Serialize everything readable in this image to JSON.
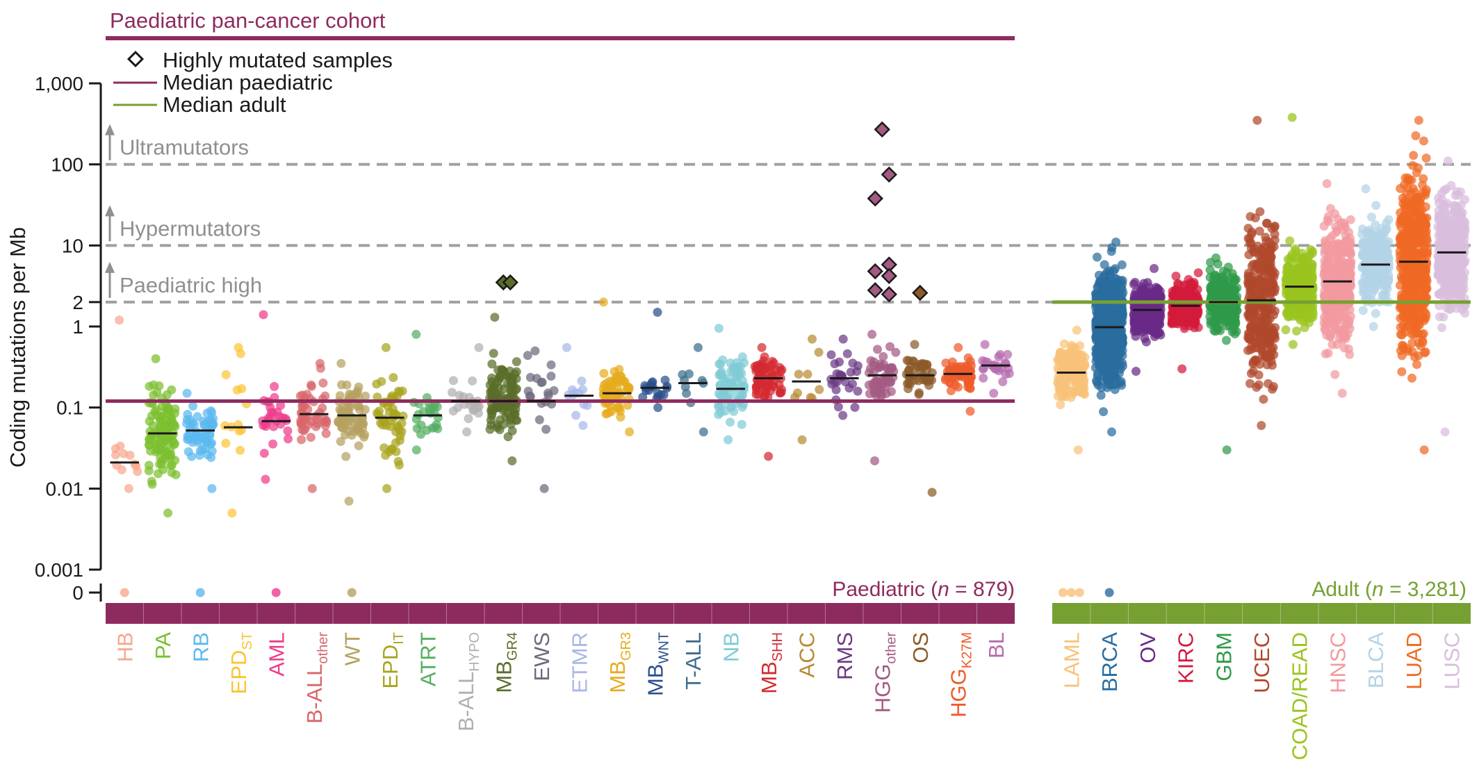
{
  "colors": {
    "paediatric": "#8e2b5e",
    "adult": "#76a032",
    "threshold": "#a0a0a0",
    "axis": "#1a1a1a"
  },
  "chart_data": {
    "type": "scatter",
    "title": "Paediatric pan-cancer cohort",
    "ylabel": "Coding mutations per Mb",
    "yscale": "log",
    "ylim": [
      0.001,
      1000
    ],
    "yticks": [
      {
        "value": 1000,
        "label": "1,000"
      },
      {
        "value": 100,
        "label": "100"
      },
      {
        "value": 10,
        "label": "10"
      },
      {
        "value": 2,
        "label": "2"
      },
      {
        "value": 1,
        "label": "1"
      },
      {
        "value": 0.1,
        "label": "0.1"
      },
      {
        "value": 0.01,
        "label": "0.01"
      },
      {
        "value": 0.001,
        "label": "0.001"
      }
    ],
    "zero_label": "0",
    "legend": [
      {
        "symbol": "diamond",
        "label": "Highly mutated samples"
      },
      {
        "symbol": "line-paediatric",
        "label": "Median paediatric"
      },
      {
        "symbol": "line-adult",
        "label": "Median adult"
      }
    ],
    "thresholds": [
      {
        "name": "ultramutators",
        "label": "Ultramutators",
        "value": 100
      },
      {
        "name": "hypermutators",
        "label": "Hypermutators",
        "value": 10
      },
      {
        "name": "paediatric-high",
        "label": "Paediatric high",
        "value": 2
      }
    ],
    "median_paediatric": 0.12,
    "median_adult": 2.0,
    "groups": [
      {
        "name": "paediatric",
        "label_prefix": "Paediatric (",
        "label_n": "n",
        "label_suffix": " = 879)"
      },
      {
        "name": "adult",
        "label_prefix": "Adult (",
        "label_n": "n",
        "label_suffix": " = 3,281)"
      }
    ],
    "series": [
      {
        "group": "paediatric",
        "label": "HB",
        "sub": "",
        "color": "#f7a78c",
        "median": 0.021,
        "range": [
          0.01,
          1.2
        ],
        "count": 12,
        "zeros": 1,
        "highly_mutated": []
      },
      {
        "group": "paediatric",
        "label": "PA",
        "sub": "",
        "color": "#7bbf2f",
        "median": 0.048,
        "range": [
          0.005,
          0.4
        ],
        "count": 110,
        "zeros": 0,
        "highly_mutated": []
      },
      {
        "group": "paediatric",
        "label": "RB",
        "sub": "",
        "color": "#5cb9ee",
        "median": 0.052,
        "range": [
          0.01,
          0.15
        ],
        "count": 60,
        "zeros": 1,
        "highly_mutated": []
      },
      {
        "group": "paediatric",
        "label": "EPD",
        "sub": "ST",
        "color": "#fcc434",
        "median": 0.057,
        "range": [
          0.005,
          0.55
        ],
        "count": 14,
        "zeros": 0,
        "highly_mutated": []
      },
      {
        "group": "paediatric",
        "label": "AML",
        "sub": "",
        "color": "#ee3c8c",
        "median": 0.068,
        "range": [
          0.013,
          1.4
        ],
        "count": 30,
        "zeros": 1,
        "highly_mutated": []
      },
      {
        "group": "paediatric",
        "label": "B-ALL",
        "sub": "other",
        "color": "#d8666b",
        "median": 0.083,
        "range": [
          0.01,
          0.35
        ],
        "count": 50,
        "zeros": 0,
        "highly_mutated": []
      },
      {
        "group": "paediatric",
        "label": "WT",
        "sub": "",
        "color": "#b5a160",
        "median": 0.08,
        "range": [
          0.007,
          0.35
        ],
        "count": 70,
        "zeros": 1,
        "highly_mutated": []
      },
      {
        "group": "paediatric",
        "label": "EPD",
        "sub": "IT",
        "color": "#a8a41e",
        "median": 0.075,
        "range": [
          0.01,
          0.55
        ],
        "count": 55,
        "zeros": 0,
        "highly_mutated": []
      },
      {
        "group": "paediatric",
        "label": "ATRT",
        "sub": "",
        "color": "#55ae62",
        "median": 0.08,
        "range": [
          0.03,
          0.8
        ],
        "count": 25,
        "zeros": 0,
        "highly_mutated": []
      },
      {
        "group": "paediatric",
        "label": "B-ALL",
        "sub": "HYPO",
        "color": "#b0b0b0",
        "median": 0.12,
        "range": [
          0.05,
          0.55
        ],
        "count": 20,
        "zeros": 0,
        "highly_mutated": []
      },
      {
        "group": "paediatric",
        "label": "MB",
        "sub": "GR4",
        "color": "#5a6e2a",
        "median": 0.12,
        "range": [
          0.022,
          1.3
        ],
        "count": 110,
        "zeros": 0,
        "highly_mutated": [
          3.5,
          3.5
        ]
      },
      {
        "group": "paediatric",
        "label": "EWS",
        "sub": "",
        "color": "#6b6b7c",
        "median": 0.12,
        "range": [
          0.01,
          0.5
        ],
        "count": 20,
        "zeros": 0,
        "highly_mutated": []
      },
      {
        "group": "paediatric",
        "label": "ETMR",
        "sub": "",
        "color": "#a8b8e8",
        "median": 0.14,
        "range": [
          0.06,
          0.55
        ],
        "count": 12,
        "zeros": 0,
        "highly_mutated": []
      },
      {
        "group": "paediatric",
        "label": "MB",
        "sub": "GR3",
        "color": "#e6ac1f",
        "median": 0.15,
        "range": [
          0.05,
          2.0
        ],
        "count": 65,
        "zeros": 0,
        "highly_mutated": []
      },
      {
        "group": "paediatric",
        "label": "MB",
        "sub": "WNT",
        "color": "#2a4f8c",
        "median": 0.175,
        "range": [
          0.1,
          1.5
        ],
        "count": 20,
        "zeros": 0,
        "highly_mutated": []
      },
      {
        "group": "paediatric",
        "label": "T-ALL",
        "sub": "",
        "color": "#3d6d8c",
        "median": 0.2,
        "range": [
          0.05,
          0.55
        ],
        "count": 10,
        "zeros": 0,
        "highly_mutated": []
      },
      {
        "group": "paediatric",
        "label": "NB",
        "sub": "",
        "color": "#7fcbd6",
        "median": 0.17,
        "range": [
          0.04,
          0.95
        ],
        "count": 75,
        "zeros": 0,
        "highly_mutated": []
      },
      {
        "group": "paediatric",
        "label": "MB",
        "sub": "SHH",
        "color": "#d42a30",
        "median": 0.23,
        "range": [
          0.025,
          0.55
        ],
        "count": 70,
        "zeros": 0,
        "highly_mutated": []
      },
      {
        "group": "paediatric",
        "label": "ACC",
        "sub": "",
        "color": "#b78a36",
        "median": 0.21,
        "range": [
          0.04,
          0.7
        ],
        "count": 10,
        "zeros": 0,
        "highly_mutated": []
      },
      {
        "group": "paediatric",
        "label": "RMS",
        "sub": "",
        "color": "#6c3a86",
        "median": 0.23,
        "range": [
          0.08,
          0.7
        ],
        "count": 28,
        "zeros": 0,
        "highly_mutated": []
      },
      {
        "group": "paediatric",
        "label": "HGG",
        "sub": "other",
        "color": "#a45a82",
        "median": 0.25,
        "range": [
          0.022,
          0.8
        ],
        "count": 55,
        "zeros": 0,
        "highly_mutated": [
          270,
          75,
          38,
          5.8,
          4.8,
          4.2,
          2.8,
          2.5
        ]
      },
      {
        "group": "paediatric",
        "label": "OS",
        "sub": "",
        "color": "#8a5a28",
        "median": 0.25,
        "range": [
          0.009,
          0.6
        ],
        "count": 45,
        "zeros": 0,
        "highly_mutated": [
          2.6
        ]
      },
      {
        "group": "paediatric",
        "label": "HGG",
        "sub": "K27M",
        "color": "#ef5a2a",
        "median": 0.26,
        "range": [
          0.09,
          0.55
        ],
        "count": 60,
        "zeros": 0,
        "highly_mutated": []
      },
      {
        "group": "paediatric",
        "label": "BL",
        "sub": "",
        "color": "#b66aae",
        "median": 0.33,
        "range": [
          0.15,
          0.6
        ],
        "count": 25,
        "zeros": 0,
        "highly_mutated": []
      },
      {
        "group": "adult",
        "label": "LAML",
        "sub": "",
        "color": "#f8c27a",
        "median": 0.27,
        "range": [
          0.03,
          0.9
        ],
        "count": 170,
        "zeros": 3,
        "highly_mutated": []
      },
      {
        "group": "adult",
        "label": "BRCA",
        "sub": "",
        "color": "#2a6c9e",
        "median": 0.98,
        "range": [
          0.05,
          11
        ],
        "count": 600,
        "zeros": 1,
        "highly_mutated": []
      },
      {
        "group": "adult",
        "label": "OV",
        "sub": "",
        "color": "#6a2a86",
        "median": 1.6,
        "range": [
          0.28,
          5.2
        ],
        "count": 300,
        "zeros": 0,
        "highly_mutated": []
      },
      {
        "group": "adult",
        "label": "KIRC",
        "sub": "",
        "color": "#d41a3c",
        "median": 1.8,
        "range": [
          0.3,
          4.6
        ],
        "count": 280,
        "zeros": 0,
        "highly_mutated": []
      },
      {
        "group": "adult",
        "label": "GBM",
        "sub": "",
        "color": "#2f9a4a",
        "median": 2.0,
        "range": [
          0.03,
          7.0
        ],
        "count": 250,
        "zeros": 0,
        "highly_mutated": []
      },
      {
        "group": "adult",
        "label": "UCEC",
        "sub": "",
        "color": "#b0482c",
        "median": 2.1,
        "range": [
          0.06,
          350
        ],
        "count": 300,
        "zeros": 0,
        "highly_mutated": []
      },
      {
        "group": "adult",
        "label": "COAD/READ",
        "sub": "",
        "color": "#9ac41e",
        "median": 3.1,
        "range": [
          0.6,
          380
        ],
        "count": 300,
        "zeros": 0,
        "highly_mutated": []
      },
      {
        "group": "adult",
        "label": "HNSC",
        "sub": "",
        "color": "#f19aa0",
        "median": 3.6,
        "range": [
          0.15,
          58
        ],
        "count": 350,
        "zeros": 0,
        "highly_mutated": []
      },
      {
        "group": "adult",
        "label": "BLCA",
        "sub": "",
        "color": "#b3d3e6",
        "median": 5.8,
        "range": [
          1.0,
          50
        ],
        "count": 250,
        "zeros": 0,
        "highly_mutated": []
      },
      {
        "group": "adult",
        "label": "LUAD",
        "sub": "",
        "color": "#f06a24",
        "median": 6.3,
        "range": [
          0.03,
          350
        ],
        "count": 450,
        "zeros": 0,
        "highly_mutated": []
      },
      {
        "group": "adult",
        "label": "LUSC",
        "sub": "",
        "color": "#d8bedc",
        "median": 8.2,
        "range": [
          0.05,
          110
        ],
        "count": 350,
        "zeros": 0,
        "highly_mutated": []
      }
    ]
  }
}
